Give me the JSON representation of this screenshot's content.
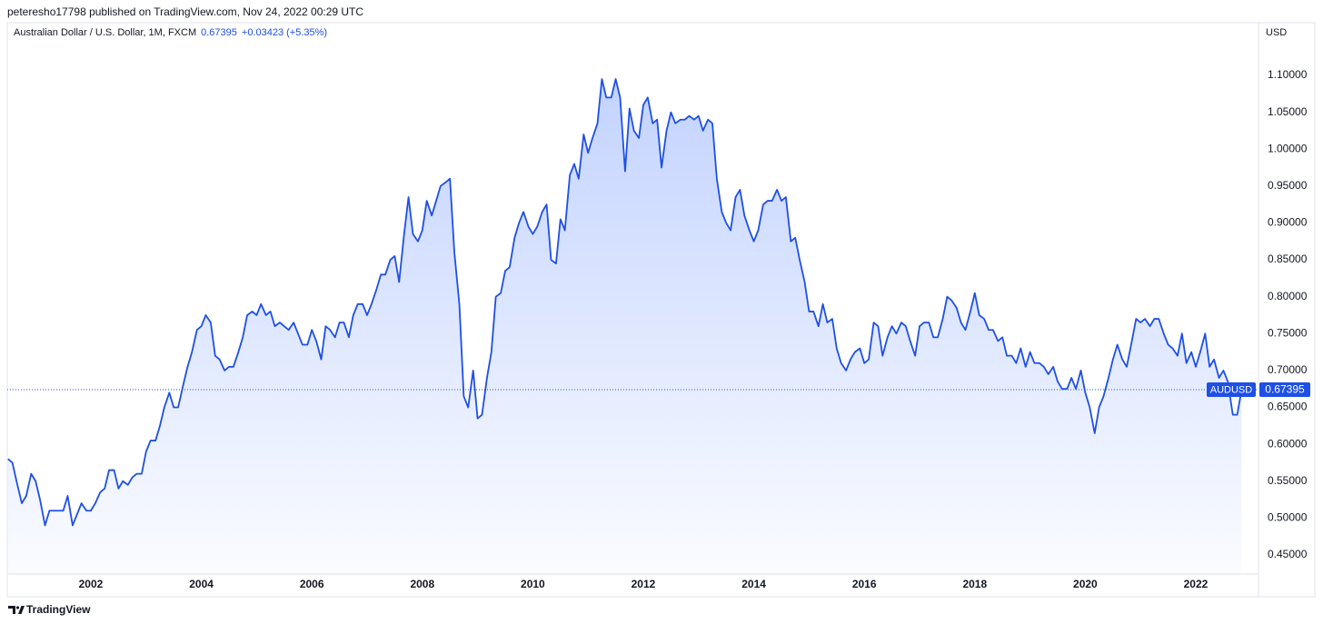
{
  "header": {
    "attribution": "peteresho17798 published on TradingView.com, Nov 24, 2022 00:29 UTC"
  },
  "chart_data": {
    "type": "area",
    "title": "Australian Dollar / U.S. Dollar, 1M, FXCM",
    "change_label": "+0.03423 (+5.35%)",
    "price_axis_label": "USD",
    "x": [
      2000.5,
      2000.58,
      2000.67,
      2000.75,
      2000.83,
      2000.92,
      2001,
      2001.08,
      2001.17,
      2001.25,
      2001.33,
      2001.42,
      2001.5,
      2001.58,
      2001.67,
      2001.75,
      2001.83,
      2001.92,
      2002,
      2002.08,
      2002.17,
      2002.25,
      2002.33,
      2002.42,
      2002.5,
      2002.58,
      2002.67,
      2002.75,
      2002.83,
      2002.92,
      2003,
      2003.08,
      2003.17,
      2003.25,
      2003.33,
      2003.42,
      2003.5,
      2003.58,
      2003.67,
      2003.75,
      2003.83,
      2003.92,
      2004,
      2004.08,
      2004.17,
      2004.25,
      2004.33,
      2004.42,
      2004.5,
      2004.58,
      2004.67,
      2004.75,
      2004.83,
      2004.92,
      2005,
      2005.08,
      2005.17,
      2005.25,
      2005.33,
      2005.42,
      2005.5,
      2005.58,
      2005.67,
      2005.75,
      2005.83,
      2005.92,
      2006,
      2006.08,
      2006.17,
      2006.25,
      2006.33,
      2006.42,
      2006.5,
      2006.58,
      2006.67,
      2006.75,
      2006.83,
      2006.92,
      2007,
      2007.08,
      2007.17,
      2007.25,
      2007.33,
      2007.42,
      2007.5,
      2007.58,
      2007.67,
      2007.75,
      2007.83,
      2007.92,
      2008,
      2008.08,
      2008.17,
      2008.25,
      2008.33,
      2008.42,
      2008.5,
      2008.58,
      2008.67,
      2008.75,
      2008.83,
      2008.92,
      2009,
      2009.08,
      2009.17,
      2009.25,
      2009.33,
      2009.42,
      2009.5,
      2009.58,
      2009.67,
      2009.75,
      2009.83,
      2009.92,
      2010,
      2010.08,
      2010.17,
      2010.25,
      2010.33,
      2010.42,
      2010.5,
      2010.58,
      2010.67,
      2010.75,
      2010.83,
      2010.92,
      2011,
      2011.08,
      2011.17,
      2011.25,
      2011.33,
      2011.42,
      2011.5,
      2011.58,
      2011.67,
      2011.75,
      2011.83,
      2011.92,
      2012,
      2012.08,
      2012.17,
      2012.25,
      2012.33,
      2012.42,
      2012.5,
      2012.58,
      2012.67,
      2012.75,
      2012.83,
      2012.92,
      2013,
      2013.08,
      2013.17,
      2013.25,
      2013.33,
      2013.42,
      2013.5,
      2013.58,
      2013.67,
      2013.75,
      2013.83,
      2013.92,
      2014,
      2014.08,
      2014.17,
      2014.25,
      2014.33,
      2014.42,
      2014.5,
      2014.58,
      2014.67,
      2014.75,
      2014.83,
      2014.92,
      2015,
      2015.08,
      2015.17,
      2015.25,
      2015.33,
      2015.42,
      2015.5,
      2015.58,
      2015.67,
      2015.75,
      2015.83,
      2015.92,
      2016,
      2016.08,
      2016.17,
      2016.25,
      2016.33,
      2016.42,
      2016.5,
      2016.58,
      2016.67,
      2016.75,
      2016.83,
      2016.92,
      2017,
      2017.08,
      2017.17,
      2017.25,
      2017.33,
      2017.42,
      2017.5,
      2017.58,
      2017.67,
      2017.75,
      2017.83,
      2017.92,
      2018,
      2018.08,
      2018.17,
      2018.25,
      2018.33,
      2018.42,
      2018.5,
      2018.58,
      2018.67,
      2018.75,
      2018.83,
      2018.92,
      2019,
      2019.08,
      2019.17,
      2019.25,
      2019.33,
      2019.42,
      2019.5,
      2019.58,
      2019.67,
      2019.75,
      2019.83,
      2019.92,
      2020,
      2020.08,
      2020.17,
      2020.25,
      2020.33,
      2020.42,
      2020.5,
      2020.58,
      2020.67,
      2020.75,
      2020.83,
      2020.92,
      2021,
      2021.08,
      2021.17,
      2021.25,
      2021.33,
      2021.42,
      2021.5,
      2021.58,
      2021.67,
      2021.75,
      2021.83,
      2021.92,
      2022,
      2022.08,
      2022.17,
      2022.25,
      2022.33,
      2022.42,
      2022.5,
      2022.58,
      2022.67,
      2022.75,
      2022.83
    ],
    "series": [
      {
        "name": "AUDUSD",
        "color": "#1e4fe6",
        "values": [
          0.58,
          0.575,
          0.545,
          0.52,
          0.53,
          0.56,
          0.55,
          0.525,
          0.49,
          0.51,
          0.51,
          0.51,
          0.51,
          0.53,
          0.49,
          0.505,
          0.52,
          0.51,
          0.51,
          0.52,
          0.535,
          0.54,
          0.565,
          0.565,
          0.54,
          0.55,
          0.545,
          0.555,
          0.56,
          0.56,
          0.59,
          0.605,
          0.605,
          0.625,
          0.65,
          0.67,
          0.65,
          0.65,
          0.68,
          0.705,
          0.725,
          0.755,
          0.76,
          0.775,
          0.765,
          0.72,
          0.715,
          0.7,
          0.705,
          0.705,
          0.725,
          0.745,
          0.775,
          0.78,
          0.775,
          0.79,
          0.775,
          0.78,
          0.76,
          0.765,
          0.76,
          0.755,
          0.765,
          0.75,
          0.735,
          0.735,
          0.755,
          0.74,
          0.715,
          0.76,
          0.755,
          0.745,
          0.765,
          0.765,
          0.745,
          0.775,
          0.79,
          0.79,
          0.775,
          0.79,
          0.81,
          0.83,
          0.83,
          0.85,
          0.855,
          0.82,
          0.885,
          0.935,
          0.885,
          0.875,
          0.89,
          0.93,
          0.91,
          0.93,
          0.95,
          0.955,
          0.96,
          0.86,
          0.79,
          0.665,
          0.65,
          0.7,
          0.635,
          0.64,
          0.69,
          0.725,
          0.8,
          0.805,
          0.835,
          0.84,
          0.88,
          0.9,
          0.915,
          0.895,
          0.885,
          0.895,
          0.915,
          0.925,
          0.85,
          0.845,
          0.905,
          0.89,
          0.965,
          0.98,
          0.96,
          1.02,
          0.995,
          1.015,
          1.035,
          1.095,
          1.07,
          1.07,
          1.095,
          1.07,
          0.97,
          1.055,
          1.025,
          1.015,
          1.06,
          1.07,
          1.035,
          1.04,
          0.975,
          1.025,
          1.05,
          1.035,
          1.04,
          1.04,
          1.045,
          1.04,
          1.045,
          1.025,
          1.04,
          1.035,
          0.96,
          0.915,
          0.9,
          0.89,
          0.935,
          0.945,
          0.91,
          0.89,
          0.875,
          0.89,
          0.925,
          0.93,
          0.93,
          0.945,
          0.93,
          0.935,
          0.875,
          0.88,
          0.85,
          0.82,
          0.78,
          0.78,
          0.76,
          0.79,
          0.765,
          0.77,
          0.73,
          0.71,
          0.7,
          0.715,
          0.725,
          0.73,
          0.71,
          0.715,
          0.765,
          0.76,
          0.72,
          0.745,
          0.76,
          0.75,
          0.765,
          0.76,
          0.74,
          0.72,
          0.76,
          0.765,
          0.765,
          0.745,
          0.745,
          0.77,
          0.8,
          0.795,
          0.785,
          0.765,
          0.755,
          0.78,
          0.805,
          0.775,
          0.77,
          0.755,
          0.755,
          0.74,
          0.745,
          0.72,
          0.72,
          0.71,
          0.73,
          0.705,
          0.725,
          0.71,
          0.71,
          0.705,
          0.695,
          0.705,
          0.685,
          0.675,
          0.675,
          0.69,
          0.675,
          0.7,
          0.67,
          0.65,
          0.615,
          0.65,
          0.665,
          0.69,
          0.715,
          0.735,
          0.715,
          0.705,
          0.735,
          0.77,
          0.765,
          0.77,
          0.76,
          0.77,
          0.77,
          0.75,
          0.735,
          0.73,
          0.72,
          0.75,
          0.71,
          0.725,
          0.705,
          0.725,
          0.75,
          0.705,
          0.715,
          0.69,
          0.7,
          0.685,
          0.64,
          0.64,
          0.67395
        ]
      }
    ],
    "xlim": [
      2000.487,
      2023.135
    ],
    "xticks": [
      2002,
      2004,
      2006,
      2008,
      2010,
      2012,
      2014,
      2016,
      2018,
      2020,
      2022
    ],
    "ylim": [
      0.4241,
      1.1714
    ],
    "yticks": [
      {
        "value": 0.45,
        "label": "0.45000"
      },
      {
        "value": 0.5,
        "label": "0.50000"
      },
      {
        "value": 0.55,
        "label": "0.55000"
      },
      {
        "value": 0.6,
        "label": "0.60000"
      },
      {
        "value": 0.65,
        "label": "0.65000"
      },
      {
        "value": 0.7,
        "label": "0.70000"
      },
      {
        "value": 0.75,
        "label": "0.75000"
      },
      {
        "value": 0.8,
        "label": "0.80000"
      },
      {
        "value": 0.85,
        "label": "0.85000"
      },
      {
        "value": 0.9,
        "label": "0.90000"
      },
      {
        "value": 0.95,
        "label": "0.95000"
      },
      {
        "value": 1.0,
        "label": "1.00000"
      },
      {
        "value": 1.05,
        "label": "1.05000"
      },
      {
        "value": 1.1,
        "label": "1.10000"
      }
    ],
    "grid": false,
    "last_price_line": true
  },
  "footer": {
    "brand": "TradingView"
  }
}
